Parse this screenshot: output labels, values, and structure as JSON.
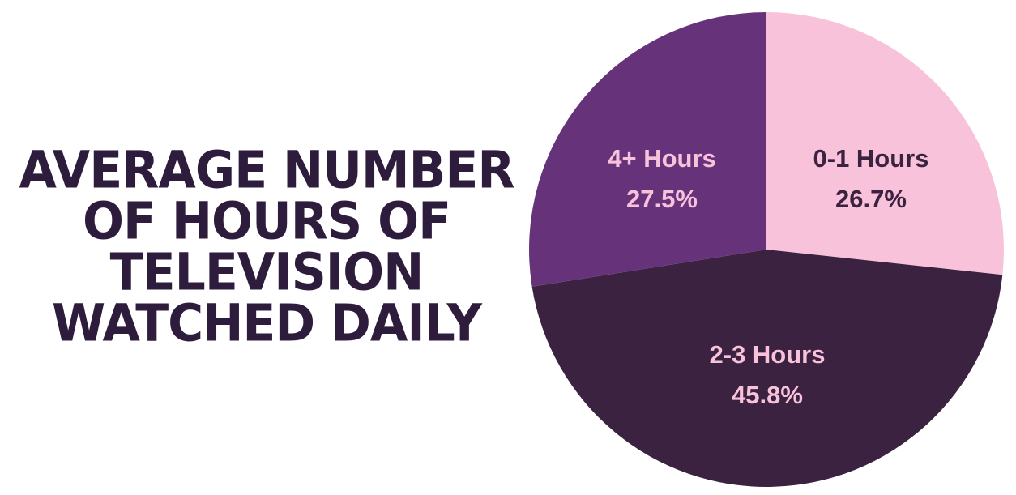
{
  "title": {
    "lines": [
      "AVERAGE NUMBER",
      "OF HOURS OF",
      "TELEVISION",
      "WATCHED DAILY"
    ]
  },
  "colors": {
    "title": "#2e1c3d",
    "background": "#ffffff"
  },
  "chart_data": {
    "type": "pie",
    "title": "AVERAGE NUMBER OF HOURS OF TELEVISION WATCHED DAILY",
    "start_angle_deg": 0,
    "direction": "clockwise",
    "slices": [
      {
        "label": "0-1 Hours",
        "value": 26.7,
        "value_label": "26.7%",
        "color": "#f8c2da",
        "text_color": "#3b2240"
      },
      {
        "label": "2-3 Hours",
        "value": 45.8,
        "value_label": "45.8%",
        "color": "#3b2240",
        "text_color": "#f8c2da"
      },
      {
        "label": "4+ Hours",
        "value": 27.5,
        "value_label": "27.5%",
        "color": "#66327a",
        "text_color": "#f8c2da"
      }
    ]
  }
}
